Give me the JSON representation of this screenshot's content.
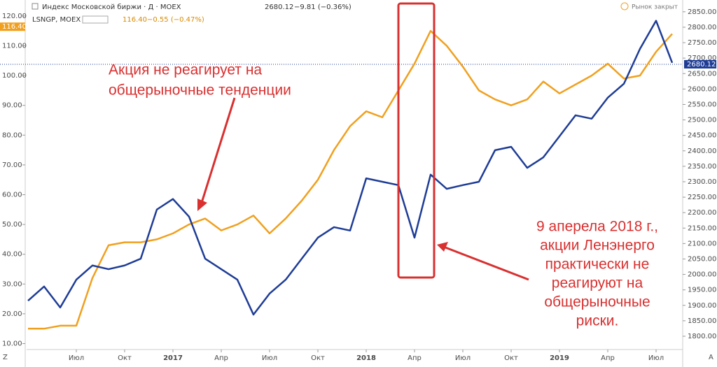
{
  "chart_data": {
    "type": "line",
    "header": {
      "main_title": "Индекс Московской биржи · Д · MOEX",
      "main_change": "−9.81 (−0.36%)",
      "sub_title": "LSNGP, MOEX",
      "sub_change": "−0.55 (−0.47%)",
      "status": "Рынок закрыт"
    },
    "annotations": {
      "left": [
        "Акция не реагирует на",
        "общерыночные тенденции"
      ],
      "right": [
        "9 аперела 2018 г.,",
        "акции Ленэнерго",
        "практически не",
        "реагируют на",
        "общерыночные",
        "риски."
      ]
    },
    "categories": [
      "2016-04",
      "2016-05",
      "2016-06",
      "2016-07",
      "2016-08",
      "2016-09",
      "2016-10",
      "2016-11",
      "2016-12",
      "2017-01",
      "2017-02",
      "2017-03",
      "2017-04",
      "2017-05",
      "2017-06",
      "2017-07",
      "2017-08",
      "2017-09",
      "2017-10",
      "2017-11",
      "2017-12",
      "2018-01",
      "2018-02",
      "2018-03",
      "2018-04",
      "2018-05",
      "2018-06",
      "2018-07",
      "2018-08",
      "2018-09",
      "2018-10",
      "2018-11",
      "2018-12",
      "2019-01",
      "2019-02",
      "2019-03",
      "2019-04",
      "2019-05",
      "2019-06",
      "2019-07",
      "2019-08"
    ],
    "series": [
      {
        "name": "LSNGP",
        "color": "#f0a01e",
        "axis": "y",
        "last": {
          "value": 116.4,
          "label": "116.40"
        },
        "values": [
          15,
          15,
          16,
          16,
          32,
          43,
          44,
          44,
          45,
          47,
          50,
          52,
          48,
          50,
          53,
          47,
          52,
          58,
          65,
          75,
          83,
          88,
          86,
          95,
          104,
          115,
          110,
          103,
          95,
          92,
          90,
          92,
          98,
          94,
          97,
          100,
          104,
          99,
          100,
          108,
          114
        ]
      },
      {
        "name": "MOEX",
        "color": "#1e3c96",
        "axis": "y2",
        "last": {
          "value": 2680.12,
          "label": "2680.12"
        },
        "values": [
          1915,
          1961,
          1893,
          1983,
          2029,
          2017,
          2029,
          2051,
          2210,
          2244,
          2187,
          2051,
          2017,
          1983,
          1870,
          1938,
          1983,
          2051,
          2119,
          2153,
          2142,
          2311,
          2300,
          2289,
          2119,
          2323,
          2277,
          2289,
          2300,
          2402,
          2413,
          2345,
          2379,
          2447,
          2515,
          2504,
          2572,
          2617,
          2730,
          2821,
          2685
        ]
      }
    ],
    "xticks": [
      {
        "value": "2016-07",
        "label": "Июл"
      },
      {
        "value": "2016-10",
        "label": "Окт"
      },
      {
        "value": "2017-01",
        "label": "2017"
      },
      {
        "value": "2017-04",
        "label": "Апр"
      },
      {
        "value": "2017-07",
        "label": "Июл"
      },
      {
        "value": "2017-10",
        "label": "Окт"
      },
      {
        "value": "2018-01",
        "label": "2018"
      },
      {
        "value": "2018-04",
        "label": "Апр"
      },
      {
        "value": "2018-07",
        "label": "Июл"
      },
      {
        "value": "2018-10",
        "label": "Окт"
      },
      {
        "value": "2019-01",
        "label": "2019"
      },
      {
        "value": "2019-04",
        "label": "Апр"
      },
      {
        "value": "2019-07",
        "label": "Июл"
      }
    ],
    "ylim": [
      8,
      123.5
    ],
    "yticks": [
      {
        "value": 10,
        "label": "10.00"
      },
      {
        "value": 20,
        "label": "20.00"
      },
      {
        "value": 30,
        "label": "30.00"
      },
      {
        "value": 40,
        "label": "40.00"
      },
      {
        "value": 50,
        "label": "50.00"
      },
      {
        "value": 60,
        "label": "60.00"
      },
      {
        "value": 70,
        "label": "70.00"
      },
      {
        "value": 80,
        "label": "80.00"
      },
      {
        "value": 90,
        "label": "90.00"
      },
      {
        "value": 100,
        "label": "100.00"
      },
      {
        "value": 110,
        "label": "110.00"
      },
      {
        "value": 120,
        "label": "120.00"
      }
    ],
    "y2lim": [
      1757,
      2870
    ],
    "y2ticks": [
      {
        "value": 1800,
        "label": "1800.00"
      },
      {
        "value": 1850,
        "label": "1850.00"
      },
      {
        "value": 1900,
        "label": "1900.00"
      },
      {
        "value": 1950,
        "label": "1950.00"
      },
      {
        "value": 2000,
        "label": "2000.00"
      },
      {
        "value": 2050,
        "label": "2050.00"
      },
      {
        "value": 2100,
        "label": "2100.00"
      },
      {
        "value": 2150,
        "label": "2150.00"
      },
      {
        "value": 2200,
        "label": "2200.00"
      },
      {
        "value": 2250,
        "label": "2250.00"
      },
      {
        "value": 2300,
        "label": "2300.00"
      },
      {
        "value": 2350,
        "label": "2350.00"
      },
      {
        "value": 2400,
        "label": "2400.00"
      },
      {
        "value": 2450,
        "label": "2450.00"
      },
      {
        "value": 2500,
        "label": "2500.00"
      },
      {
        "value": 2550,
        "label": "2550.00"
      },
      {
        "value": 2600,
        "label": "2600.00"
      },
      {
        "value": 2650,
        "label": "2650.00"
      },
      {
        "value": 2700,
        "label": "2700.00"
      },
      {
        "value": 2750,
        "label": "2750.00"
      },
      {
        "value": 2800,
        "label": "2800.00"
      },
      {
        "value": 2850,
        "label": "2850.00"
      }
    ]
  }
}
